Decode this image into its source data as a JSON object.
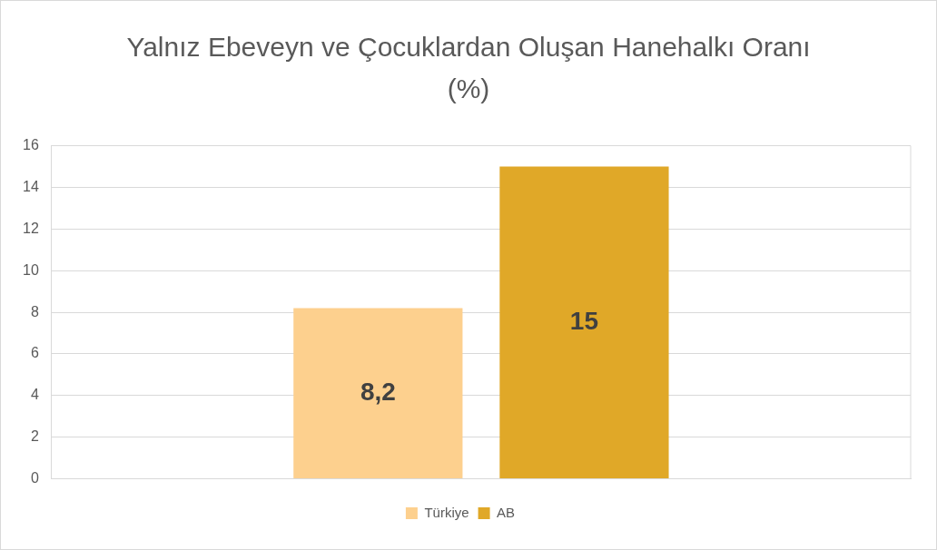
{
  "chart_data": {
    "type": "bar",
    "title": "Yalnız Ebeveyn ve Çocuklardan Oluşan Hanehalkı Oranı (%)",
    "categories": [
      null
    ],
    "series": [
      {
        "name": "Türkiye",
        "color": "#fdd08e",
        "values": [
          8.2
        ],
        "value_labels": [
          "8,2"
        ]
      },
      {
        "name": "AB",
        "color": "#e0a828",
        "values": [
          15
        ],
        "value_labels": [
          "15"
        ]
      }
    ],
    "ylim": [
      0,
      16
    ],
    "yticks": [
      0,
      2,
      4,
      6,
      8,
      10,
      12,
      14,
      16
    ],
    "grid": "y",
    "legend": "bottom"
  }
}
